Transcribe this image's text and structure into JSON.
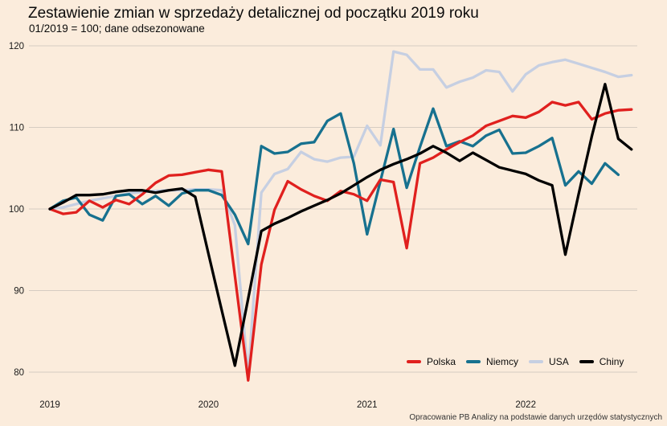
{
  "title": "Zestawienie zmian w sprzedaży detalicznej od początku 2019 roku",
  "subtitle": "01/2019 = 100; dane odsezonowane",
  "footer": "Opracowanie PB Analizy na podstawie danych urzędów statystycznych",
  "chart_data": {
    "type": "line",
    "title": "Zestawienie zmian w sprzedaży detalicznej od początku 2019 roku",
    "subtitle": "01/2019 = 100; dane odsezonowane",
    "x_unit": "month",
    "x_range": [
      "2019-01",
      "2022-09"
    ],
    "x_year_ticks": [
      "2019",
      "2020",
      "2021",
      "2022"
    ],
    "y_ticks": [
      120,
      110,
      100,
      90,
      80
    ],
    "ylim": [
      78,
      121
    ],
    "grid": "horizontal-only",
    "legend_position": "bottom-right-inside",
    "baseline_note": "01/2019 = 100",
    "series": [
      {
        "name": "Polska",
        "color": "#e0201e",
        "values": [
          100,
          99.4,
          99.6,
          101.0,
          100.2,
          101.1,
          100.6,
          101.8,
          103.2,
          104.1,
          104.2,
          104.5,
          104.8,
          104.6,
          91.8,
          79.0,
          93.2,
          99.9,
          103.4,
          102.4,
          101.6,
          101.0,
          102.2,
          101.8,
          101.0,
          103.6,
          103.3,
          95.2,
          105.6,
          106.3,
          107.3,
          108.2,
          109.0,
          110.2,
          110.8,
          111.4,
          111.2,
          111.9,
          113.1,
          112.7,
          113.1,
          111.0,
          111.7,
          112.1,
          112.2
        ]
      },
      {
        "name": "Niemcy",
        "color": "#17718f",
        "values": [
          100,
          101.0,
          101.4,
          99.3,
          98.6,
          101.6,
          101.8,
          100.6,
          101.6,
          100.4,
          101.9,
          102.3,
          102.3,
          101.7,
          99.3,
          95.7,
          107.7,
          106.8,
          107.0,
          108.0,
          108.2,
          110.8,
          111.7,
          105.6,
          96.9,
          103.4,
          109.8,
          102.6,
          107.6,
          112.3,
          107.7,
          108.3,
          107.7,
          109.0,
          109.7,
          106.8,
          106.9,
          107.7,
          108.7,
          102.9,
          104.6,
          103.1,
          105.6,
          104.2,
          null
        ]
      },
      {
        "name": "USA",
        "color": "#c6cfe2",
        "values": [
          100,
          100.2,
          100.6,
          101.0,
          101.3,
          101.6,
          101.9,
          102.1,
          102.2,
          102.3,
          102.3,
          102.4,
          102.4,
          102.3,
          98.0,
          79.6,
          102.0,
          104.3,
          104.9,
          107.0,
          106.1,
          105.8,
          106.3,
          106.4,
          110.2,
          107.8,
          119.3,
          118.9,
          117.1,
          117.1,
          114.9,
          115.6,
          116.1,
          117.0,
          116.8,
          114.4,
          116.5,
          117.6,
          118.0,
          118.3,
          117.8,
          117.3,
          116.8,
          116.2,
          116.4
        ]
      },
      {
        "name": "Chiny",
        "color": "#000000",
        "values": [
          100,
          100.8,
          101.7,
          101.7,
          101.8,
          102.1,
          102.3,
          102.3,
          102.0,
          102.3,
          102.5,
          101.5,
          94.5,
          87.6,
          80.8,
          89.0,
          97.3,
          98.2,
          98.9,
          99.7,
          100.4,
          101.1,
          101.9,
          102.9,
          103.9,
          104.8,
          105.5,
          106.1,
          106.8,
          107.7,
          106.9,
          105.9,
          106.9,
          106.0,
          105.1,
          104.7,
          104.3,
          103.5,
          102.9,
          94.4,
          101.8,
          108.9,
          115.3,
          108.6,
          107.3
        ]
      }
    ],
    "draw_order": [
      2,
      1,
      0,
      3
    ]
  }
}
